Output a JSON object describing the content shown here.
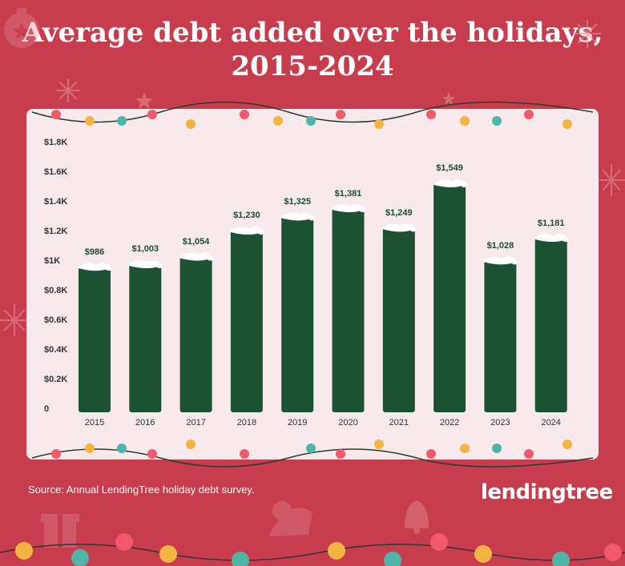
{
  "title": {
    "line1": "Average debt added over the holidays,",
    "line2": "2015-2024"
  },
  "source": "Source: Annual LendingTree holiday debt survey.",
  "logo": "lendingtree",
  "colors": {
    "background": "#c73d4d",
    "panel": "#f8e9ec",
    "bar": "#1d5134",
    "label": "#1d4a33"
  },
  "chart_data": {
    "type": "bar",
    "title": "Average debt added over the holidays, 2015-2024",
    "categories": [
      "2015",
      "2016",
      "2017",
      "2018",
      "2019",
      "2020",
      "2021",
      "2022",
      "2023",
      "2024"
    ],
    "values": [
      986,
      1003,
      1054,
      1230,
      1325,
      1381,
      1249,
      1549,
      1028,
      1181
    ],
    "value_labels": [
      "$986",
      "$1,003",
      "$1,054",
      "$1,230",
      "$1,325",
      "$1,381",
      "$1,249",
      "$1,549",
      "$1,028",
      "$1,181"
    ],
    "y_ticks": [
      "0",
      "$0.2K",
      "$0.4K",
      "$0.6K",
      "$0.8K",
      "$1K",
      "$1.2K",
      "$1.4K",
      "$1.6K",
      "$1.8K"
    ],
    "ylim": [
      0,
      1800
    ],
    "grid": false,
    "legend": "none"
  }
}
